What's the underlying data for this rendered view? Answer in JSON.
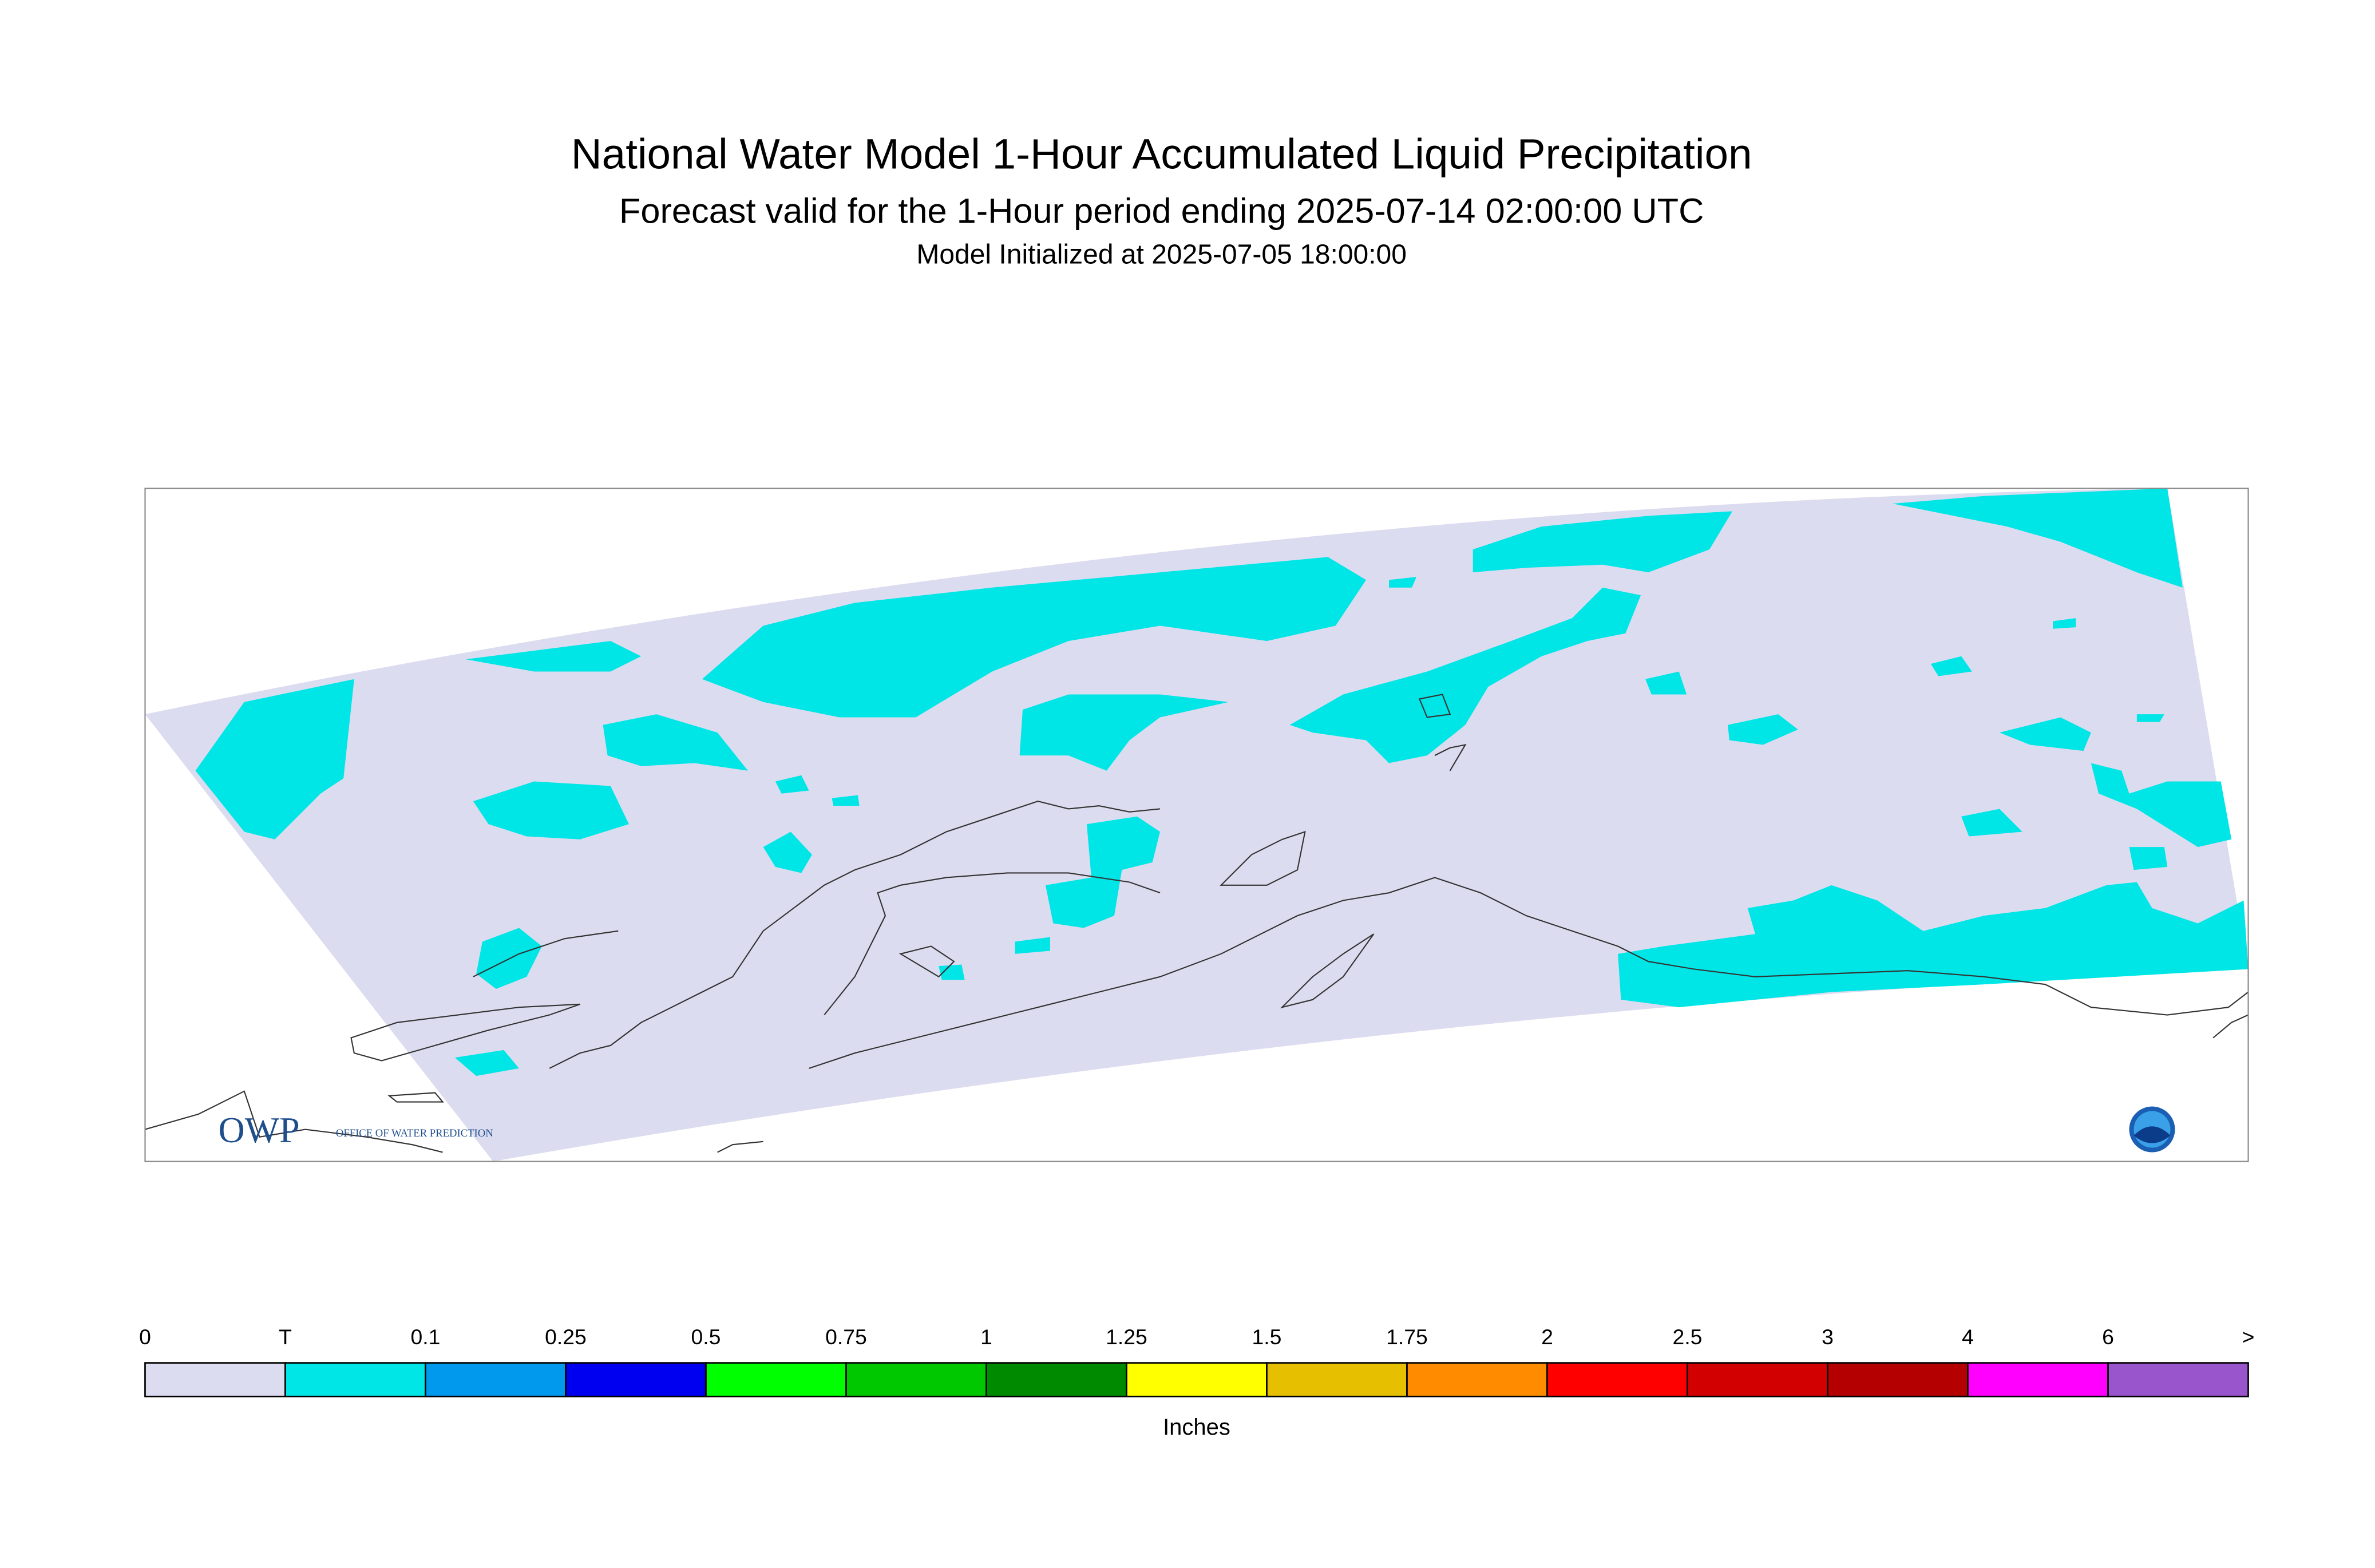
{
  "header": {
    "title": "National Water Model 1-Hour Accumulated Liquid Precipitation",
    "subtitle": "Forecast valid for the 1-Hour period ending 2025-07-14 02:00:00 UTC",
    "initialized": "Model Initialized at 2025-07-05 18:00:00"
  },
  "logo": {
    "name": "OWP",
    "text": "OFFICE OF WATER PREDICTION"
  },
  "legend": {
    "labels": [
      "0",
      "T",
      "0.1",
      "0.25",
      "0.5",
      "0.75",
      "1",
      "1.25",
      "1.5",
      "1.75",
      "2",
      "2.5",
      "3",
      "4",
      "6",
      ">"
    ],
    "colors": [
      "#dcdcf0",
      "#00e5e5",
      "#0099ee",
      "#0000f0",
      "#00ff00",
      "#00c800",
      "#008a00",
      "#ffff00",
      "#e6c000",
      "#ff8c00",
      "#ff0000",
      "#d20000",
      "#b40000",
      "#ff00ff",
      "#9955cc"
    ],
    "units": "Inches"
  }
}
